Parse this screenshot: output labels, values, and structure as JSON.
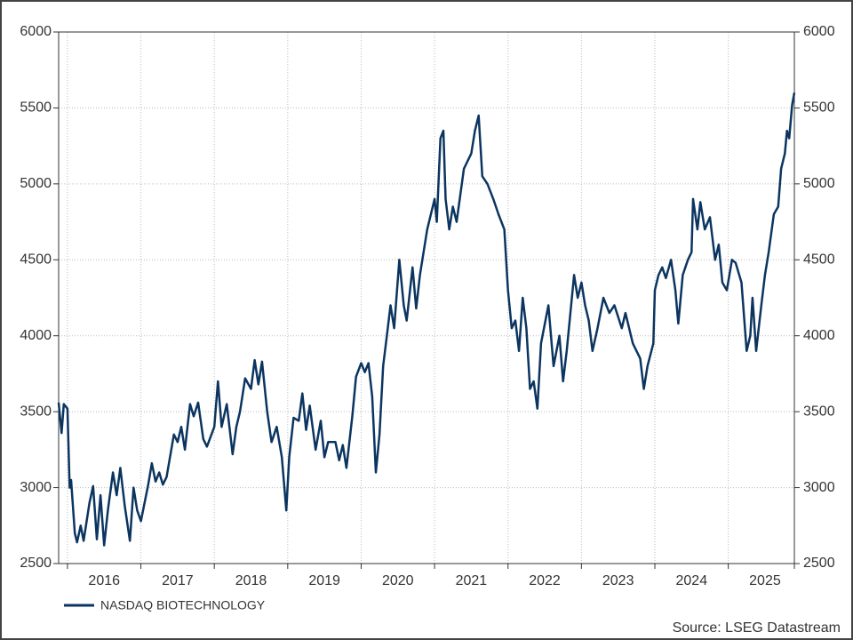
{
  "chart_data": {
    "type": "line",
    "x": [
      2015.88,
      2015.92,
      2015.95,
      2016.0,
      2016.03,
      2016.05,
      2016.1,
      2016.13,
      2016.18,
      2016.22,
      2016.3,
      2016.35,
      2016.4,
      2016.45,
      2016.5,
      2016.55,
      2016.62,
      2016.67,
      2016.72,
      2016.78,
      2016.85,
      2016.9,
      2016.95,
      2017.0,
      2017.05,
      2017.1,
      2017.15,
      2017.2,
      2017.25,
      2017.3,
      2017.35,
      2017.45,
      2017.5,
      2017.55,
      2017.6,
      2017.67,
      2017.72,
      2017.78,
      2017.85,
      2017.9,
      2018.0,
      2018.05,
      2018.1,
      2018.17,
      2018.25,
      2018.3,
      2018.35,
      2018.42,
      2018.5,
      2018.55,
      2018.6,
      2018.65,
      2018.72,
      2018.78,
      2018.85,
      2018.92,
      2018.98,
      2019.02,
      2019.08,
      2019.15,
      2019.2,
      2019.25,
      2019.3,
      2019.38,
      2019.45,
      2019.5,
      2019.55,
      2019.65,
      2019.7,
      2019.75,
      2019.8,
      2019.88,
      2019.93,
      2020.0,
      2020.05,
      2020.1,
      2020.15,
      2020.2,
      2020.25,
      2020.3,
      2020.35,
      2020.4,
      2020.45,
      2020.52,
      2020.58,
      2020.62,
      2020.7,
      2020.75,
      2020.8,
      2020.9,
      2021.0,
      2021.03,
      2021.08,
      2021.12,
      2021.15,
      2021.2,
      2021.25,
      2021.3,
      2021.4,
      2021.5,
      2021.55,
      2021.6,
      2021.65,
      2021.72,
      2021.8,
      2021.87,
      2021.95,
      2022.0,
      2022.05,
      2022.1,
      2022.15,
      2022.2,
      2022.25,
      2022.3,
      2022.35,
      2022.4,
      2022.45,
      2022.55,
      2022.62,
      2022.7,
      2022.75,
      2022.8,
      2022.9,
      2022.95,
      2023.0,
      2023.05,
      2023.1,
      2023.15,
      2023.22,
      2023.3,
      2023.38,
      2023.45,
      2023.55,
      2023.6,
      2023.7,
      2023.8,
      2023.85,
      2023.9,
      2023.98,
      2024.0,
      2024.05,
      2024.1,
      2024.15,
      2024.22,
      2024.28,
      2024.32,
      2024.38,
      2024.45,
      2024.5,
      2024.52,
      2024.58,
      2024.62,
      2024.68,
      2024.75,
      2024.82,
      2024.87,
      2024.92,
      2024.98,
      2025.05,
      2025.1,
      2025.18,
      2025.25,
      2025.3,
      2025.33,
      2025.38,
      2025.45,
      2025.5,
      2025.55,
      2025.62,
      2025.68,
      2025.72,
      2025.77,
      2025.8,
      2025.83,
      2025.87,
      2025.9
    ],
    "series": [
      {
        "name": "NASDAQ BIOTECHNOLOGY",
        "color": "#0b3560",
        "values": [
          3560,
          3360,
          3550,
          3520,
          3000,
          3050,
          2700,
          2640,
          2750,
          2650,
          2900,
          3010,
          2660,
          2950,
          2620,
          2850,
          3100,
          2950,
          3130,
          2880,
          2650,
          3000,
          2850,
          2780,
          2900,
          3020,
          3160,
          3040,
          3100,
          3020,
          3070,
          3350,
          3300,
          3400,
          3250,
          3550,
          3470,
          3560,
          3320,
          3270,
          3400,
          3700,
          3400,
          3550,
          3220,
          3400,
          3500,
          3720,
          3650,
          3840,
          3680,
          3830,
          3500,
          3300,
          3400,
          3200,
          2850,
          3200,
          3460,
          3440,
          3620,
          3380,
          3540,
          3250,
          3440,
          3200,
          3300,
          3300,
          3180,
          3280,
          3130,
          3470,
          3730,
          3820,
          3760,
          3820,
          3600,
          3100,
          3350,
          3800,
          4000,
          4200,
          4050,
          4500,
          4200,
          4100,
          4450,
          4180,
          4400,
          4700,
          4900,
          4750,
          5300,
          5350,
          4900,
          4700,
          4850,
          4750,
          5100,
          5200,
          5350,
          5450,
          5050,
          5000,
          4900,
          4800,
          4700,
          4300,
          4050,
          4100,
          3900,
          4250,
          4050,
          3650,
          3700,
          3520,
          3950,
          4200,
          3800,
          4000,
          3700,
          3900,
          4400,
          4250,
          4350,
          4200,
          4100,
          3900,
          4050,
          4250,
          4150,
          4200,
          4050,
          4150,
          3950,
          3850,
          3650,
          3800,
          3950,
          4300,
          4400,
          4450,
          4380,
          4500,
          4300,
          4080,
          4400,
          4500,
          4550,
          4900,
          4700,
          4880,
          4700,
          4780,
          4500,
          4600,
          4350,
          4300,
          4500,
          4480,
          4350,
          3900,
          4000,
          4250,
          3900,
          4200,
          4400,
          4550,
          4800,
          4850,
          5100,
          5200,
          5350,
          5300,
          5520,
          5600
        ]
      }
    ],
    "xlim": [
      2015.88,
      2025.9
    ],
    "xticks": [
      2016,
      2017,
      2018,
      2019,
      2020,
      2021,
      2022,
      2023,
      2024,
      2025
    ],
    "ylim": [
      2500,
      6000
    ],
    "yticks": [
      2500,
      3000,
      3500,
      4000,
      4500,
      5000,
      5500,
      6000
    ],
    "grid": true,
    "source": "Source: LSEG Datastream"
  }
}
